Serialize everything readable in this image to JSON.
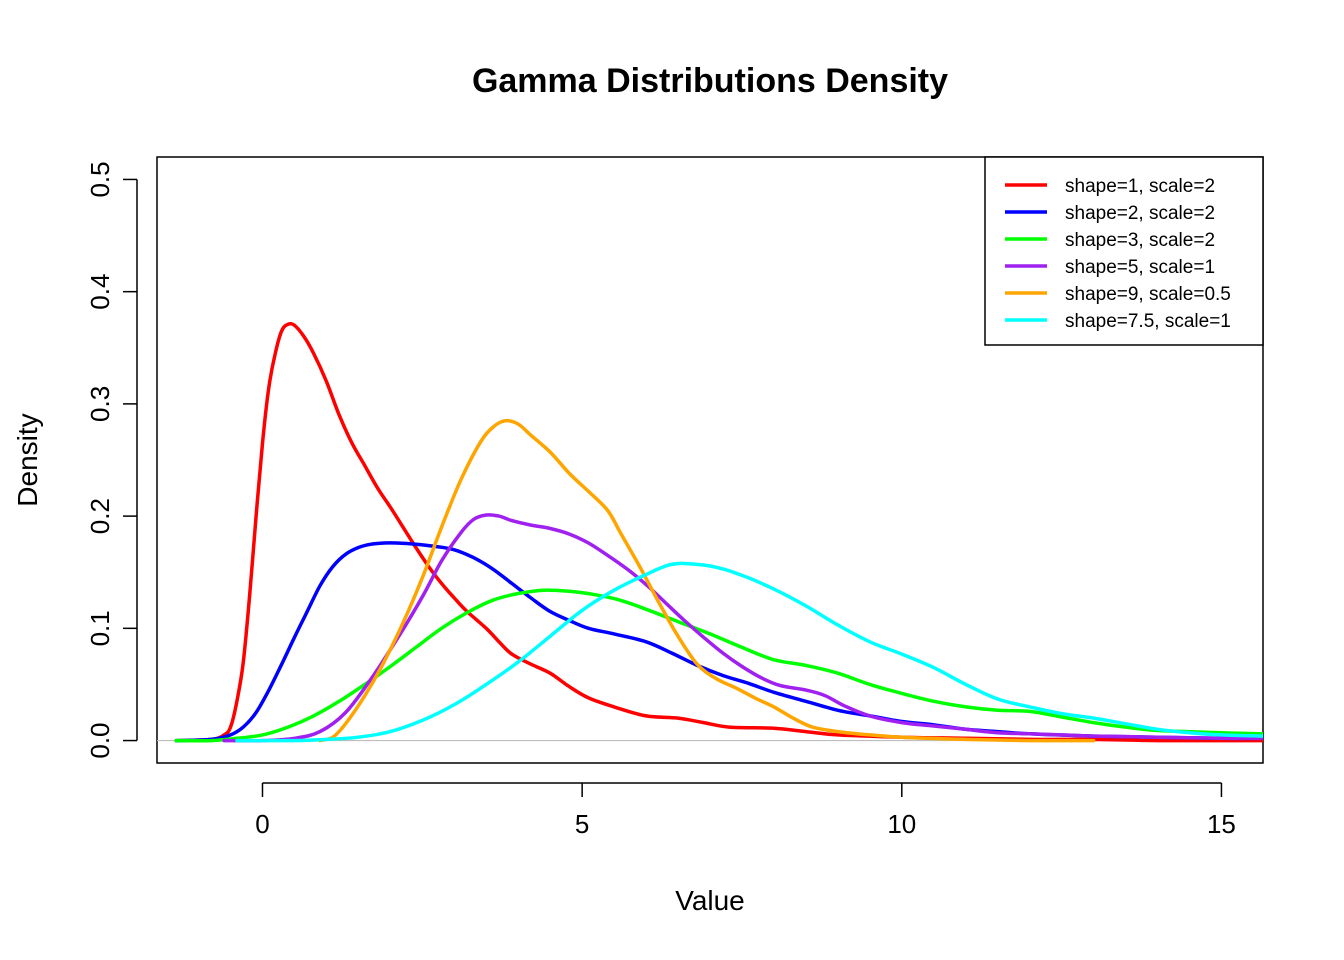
{
  "chart_data": {
    "type": "line",
    "title": "Gamma Distributions Density",
    "xlabel": "Value",
    "ylabel": "Density",
    "xlim": [
      -1.65,
      15.65
    ],
    "ylim": [
      -0.02,
      0.52
    ],
    "x_ticks": [
      0,
      5,
      10,
      15
    ],
    "y_ticks": [
      0.0,
      0.1,
      0.2,
      0.3,
      0.4,
      0.5
    ],
    "x_tick_labels": [
      "0",
      "5",
      "10",
      "15"
    ],
    "y_tick_labels": [
      "0.0",
      "0.1",
      "0.2",
      "0.3",
      "0.4",
      "0.5"
    ],
    "baseline": 0,
    "grid": false,
    "legend_position": "top-right",
    "series": [
      {
        "name": "shape=1, scale=2",
        "color": "#ff0000",
        "points": [
          [
            -1.35,
            0
          ],
          [
            -0.8,
            0.001
          ],
          [
            -0.6,
            0.005
          ],
          [
            -0.5,
            0.012
          ],
          [
            -0.4,
            0.035
          ],
          [
            -0.3,
            0.07
          ],
          [
            -0.2,
            0.13
          ],
          [
            -0.1,
            0.2
          ],
          [
            0.0,
            0.265
          ],
          [
            0.1,
            0.315
          ],
          [
            0.2,
            0.345
          ],
          [
            0.3,
            0.365
          ],
          [
            0.4,
            0.371
          ],
          [
            0.5,
            0.37
          ],
          [
            0.65,
            0.36
          ],
          [
            0.8,
            0.345
          ],
          [
            1.0,
            0.32
          ],
          [
            1.2,
            0.29
          ],
          [
            1.4,
            0.265
          ],
          [
            1.6,
            0.245
          ],
          [
            1.8,
            0.225
          ],
          [
            2.0,
            0.208
          ],
          [
            2.2,
            0.19
          ],
          [
            2.4,
            0.172
          ],
          [
            2.6,
            0.155
          ],
          [
            2.8,
            0.14
          ],
          [
            3.0,
            0.127
          ],
          [
            3.2,
            0.115
          ],
          [
            3.5,
            0.1
          ],
          [
            3.7,
            0.088
          ],
          [
            3.9,
            0.077
          ],
          [
            4.2,
            0.068
          ],
          [
            4.5,
            0.06
          ],
          [
            4.8,
            0.048
          ],
          [
            5.1,
            0.038
          ],
          [
            5.5,
            0.03
          ],
          [
            6.0,
            0.022
          ],
          [
            6.5,
            0.02
          ],
          [
            6.9,
            0.016
          ],
          [
            7.3,
            0.012
          ],
          [
            8.0,
            0.011
          ],
          [
            8.5,
            0.008
          ],
          [
            9.0,
            0.005
          ],
          [
            10.0,
            0.003
          ],
          [
            11.0,
            0.002
          ],
          [
            12.0,
            0.001
          ],
          [
            13.0,
            0.001
          ],
          [
            14.0,
            0.0
          ],
          [
            15.65,
            0.0
          ]
        ]
      },
      {
        "name": "shape=2, scale=2",
        "color": "#0000ff",
        "points": [
          [
            -1.35,
            0
          ],
          [
            -0.8,
            0.001
          ],
          [
            -0.5,
            0.005
          ],
          [
            -0.3,
            0.012
          ],
          [
            -0.1,
            0.025
          ],
          [
            0.1,
            0.045
          ],
          [
            0.3,
            0.068
          ],
          [
            0.5,
            0.092
          ],
          [
            0.7,
            0.115
          ],
          [
            0.9,
            0.138
          ],
          [
            1.1,
            0.155
          ],
          [
            1.3,
            0.166
          ],
          [
            1.5,
            0.172
          ],
          [
            1.7,
            0.175
          ],
          [
            1.9,
            0.176
          ],
          [
            2.1,
            0.176
          ],
          [
            2.4,
            0.175
          ],
          [
            2.7,
            0.173
          ],
          [
            3.0,
            0.17
          ],
          [
            3.3,
            0.163
          ],
          [
            3.6,
            0.153
          ],
          [
            3.9,
            0.14
          ],
          [
            4.2,
            0.127
          ],
          [
            4.5,
            0.115
          ],
          [
            4.8,
            0.107
          ],
          [
            5.1,
            0.1
          ],
          [
            5.5,
            0.095
          ],
          [
            6.0,
            0.088
          ],
          [
            6.4,
            0.078
          ],
          [
            6.8,
            0.067
          ],
          [
            7.2,
            0.058
          ],
          [
            7.6,
            0.051
          ],
          [
            8.0,
            0.043
          ],
          [
            8.5,
            0.035
          ],
          [
            9.0,
            0.027
          ],
          [
            9.5,
            0.022
          ],
          [
            10.0,
            0.017
          ],
          [
            10.5,
            0.014
          ],
          [
            11.0,
            0.01
          ],
          [
            11.5,
            0.008
          ],
          [
            12.0,
            0.006
          ],
          [
            13.0,
            0.004
          ],
          [
            14.0,
            0.003
          ],
          [
            15.0,
            0.002
          ],
          [
            15.65,
            0.002
          ]
        ]
      },
      {
        "name": "shape=3, scale=2",
        "color": "#00ff00",
        "points": [
          [
            -1.35,
            0
          ],
          [
            -0.8,
            0.0
          ],
          [
            -0.4,
            0.002
          ],
          [
            0.0,
            0.005
          ],
          [
            0.4,
            0.012
          ],
          [
            0.8,
            0.022
          ],
          [
            1.2,
            0.035
          ],
          [
            1.6,
            0.05
          ],
          [
            2.0,
            0.066
          ],
          [
            2.4,
            0.083
          ],
          [
            2.8,
            0.1
          ],
          [
            3.2,
            0.114
          ],
          [
            3.6,
            0.125
          ],
          [
            4.0,
            0.131
          ],
          [
            4.4,
            0.134
          ],
          [
            4.8,
            0.133
          ],
          [
            5.2,
            0.13
          ],
          [
            5.6,
            0.125
          ],
          [
            6.0,
            0.117
          ],
          [
            6.5,
            0.106
          ],
          [
            7.0,
            0.095
          ],
          [
            7.5,
            0.083
          ],
          [
            8.0,
            0.072
          ],
          [
            8.5,
            0.067
          ],
          [
            9.0,
            0.06
          ],
          [
            9.5,
            0.05
          ],
          [
            10.0,
            0.042
          ],
          [
            10.5,
            0.035
          ],
          [
            11.0,
            0.03
          ],
          [
            11.5,
            0.027
          ],
          [
            12.0,
            0.026
          ],
          [
            12.5,
            0.021
          ],
          [
            13.0,
            0.016
          ],
          [
            13.5,
            0.012
          ],
          [
            14.0,
            0.009
          ],
          [
            15.0,
            0.007
          ],
          [
            15.65,
            0.006
          ]
        ]
      },
      {
        "name": "shape=5, scale=1",
        "color": "#a020f0",
        "points": [
          [
            -0.6,
            0.0
          ],
          [
            0.0,
            0.0
          ],
          [
            0.5,
            0.002
          ],
          [
            0.9,
            0.008
          ],
          [
            1.3,
            0.025
          ],
          [
            1.7,
            0.055
          ],
          [
            2.1,
            0.09
          ],
          [
            2.5,
            0.128
          ],
          [
            2.8,
            0.16
          ],
          [
            3.1,
            0.185
          ],
          [
            3.3,
            0.197
          ],
          [
            3.5,
            0.201
          ],
          [
            3.7,
            0.2
          ],
          [
            3.9,
            0.196
          ],
          [
            4.2,
            0.192
          ],
          [
            4.5,
            0.189
          ],
          [
            4.8,
            0.184
          ],
          [
            5.1,
            0.176
          ],
          [
            5.4,
            0.165
          ],
          [
            5.7,
            0.153
          ],
          [
            6.0,
            0.139
          ],
          [
            6.3,
            0.123
          ],
          [
            6.6,
            0.107
          ],
          [
            6.9,
            0.092
          ],
          [
            7.2,
            0.078
          ],
          [
            7.5,
            0.066
          ],
          [
            7.8,
            0.056
          ],
          [
            8.1,
            0.049
          ],
          [
            8.5,
            0.045
          ],
          [
            8.8,
            0.04
          ],
          [
            9.1,
            0.031
          ],
          [
            9.5,
            0.022
          ],
          [
            10.0,
            0.016
          ],
          [
            10.5,
            0.013
          ],
          [
            11.0,
            0.01
          ],
          [
            11.5,
            0.007
          ],
          [
            12.0,
            0.006
          ],
          [
            12.5,
            0.005
          ],
          [
            13.0,
            0.004
          ],
          [
            14.0,
            0.003
          ],
          [
            15.0,
            0.002
          ],
          [
            15.65,
            0.002
          ]
        ]
      },
      {
        "name": "shape=9, scale=0.5",
        "color": "#ffa500",
        "points": [
          [
            0.9,
            0.0
          ],
          [
            1.1,
            0.003
          ],
          [
            1.3,
            0.015
          ],
          [
            1.6,
            0.04
          ],
          [
            1.9,
            0.07
          ],
          [
            2.2,
            0.105
          ],
          [
            2.5,
            0.145
          ],
          [
            2.8,
            0.19
          ],
          [
            3.1,
            0.232
          ],
          [
            3.4,
            0.265
          ],
          [
            3.6,
            0.279
          ],
          [
            3.8,
            0.285
          ],
          [
            4.0,
            0.282
          ],
          [
            4.2,
            0.272
          ],
          [
            4.5,
            0.257
          ],
          [
            4.8,
            0.238
          ],
          [
            5.1,
            0.222
          ],
          [
            5.4,
            0.205
          ],
          [
            5.6,
            0.185
          ],
          [
            5.9,
            0.155
          ],
          [
            6.2,
            0.123
          ],
          [
            6.5,
            0.093
          ],
          [
            6.8,
            0.068
          ],
          [
            7.1,
            0.055
          ],
          [
            7.4,
            0.047
          ],
          [
            7.7,
            0.038
          ],
          [
            8.0,
            0.03
          ],
          [
            8.3,
            0.02
          ],
          [
            8.6,
            0.012
          ],
          [
            9.0,
            0.008
          ],
          [
            9.5,
            0.005
          ],
          [
            10.0,
            0.003
          ],
          [
            11.0,
            0.001
          ],
          [
            12.0,
            0.0
          ],
          [
            13.0,
            0.0
          ]
        ]
      },
      {
        "name": "shape=7.5, scale=1",
        "color": "#00ffff",
        "points": [
          [
            -0.4,
            0.0
          ],
          [
            0.5,
            0.0
          ],
          [
            1.0,
            0.001
          ],
          [
            1.5,
            0.003
          ],
          [
            2.0,
            0.008
          ],
          [
            2.5,
            0.018
          ],
          [
            3.0,
            0.032
          ],
          [
            3.5,
            0.05
          ],
          [
            4.0,
            0.07
          ],
          [
            4.5,
            0.093
          ],
          [
            5.0,
            0.116
          ],
          [
            5.5,
            0.134
          ],
          [
            6.0,
            0.148
          ],
          [
            6.4,
            0.157
          ],
          [
            6.8,
            0.157
          ],
          [
            7.2,
            0.153
          ],
          [
            7.6,
            0.145
          ],
          [
            8.0,
            0.135
          ],
          [
            8.5,
            0.12
          ],
          [
            9.0,
            0.103
          ],
          [
            9.5,
            0.088
          ],
          [
            10.0,
            0.077
          ],
          [
            10.5,
            0.065
          ],
          [
            11.0,
            0.05
          ],
          [
            11.5,
            0.037
          ],
          [
            12.0,
            0.03
          ],
          [
            12.5,
            0.024
          ],
          [
            13.0,
            0.02
          ],
          [
            13.5,
            0.015
          ],
          [
            14.0,
            0.01
          ],
          [
            14.5,
            0.007
          ],
          [
            15.0,
            0.005
          ],
          [
            15.65,
            0.004
          ]
        ]
      }
    ]
  }
}
